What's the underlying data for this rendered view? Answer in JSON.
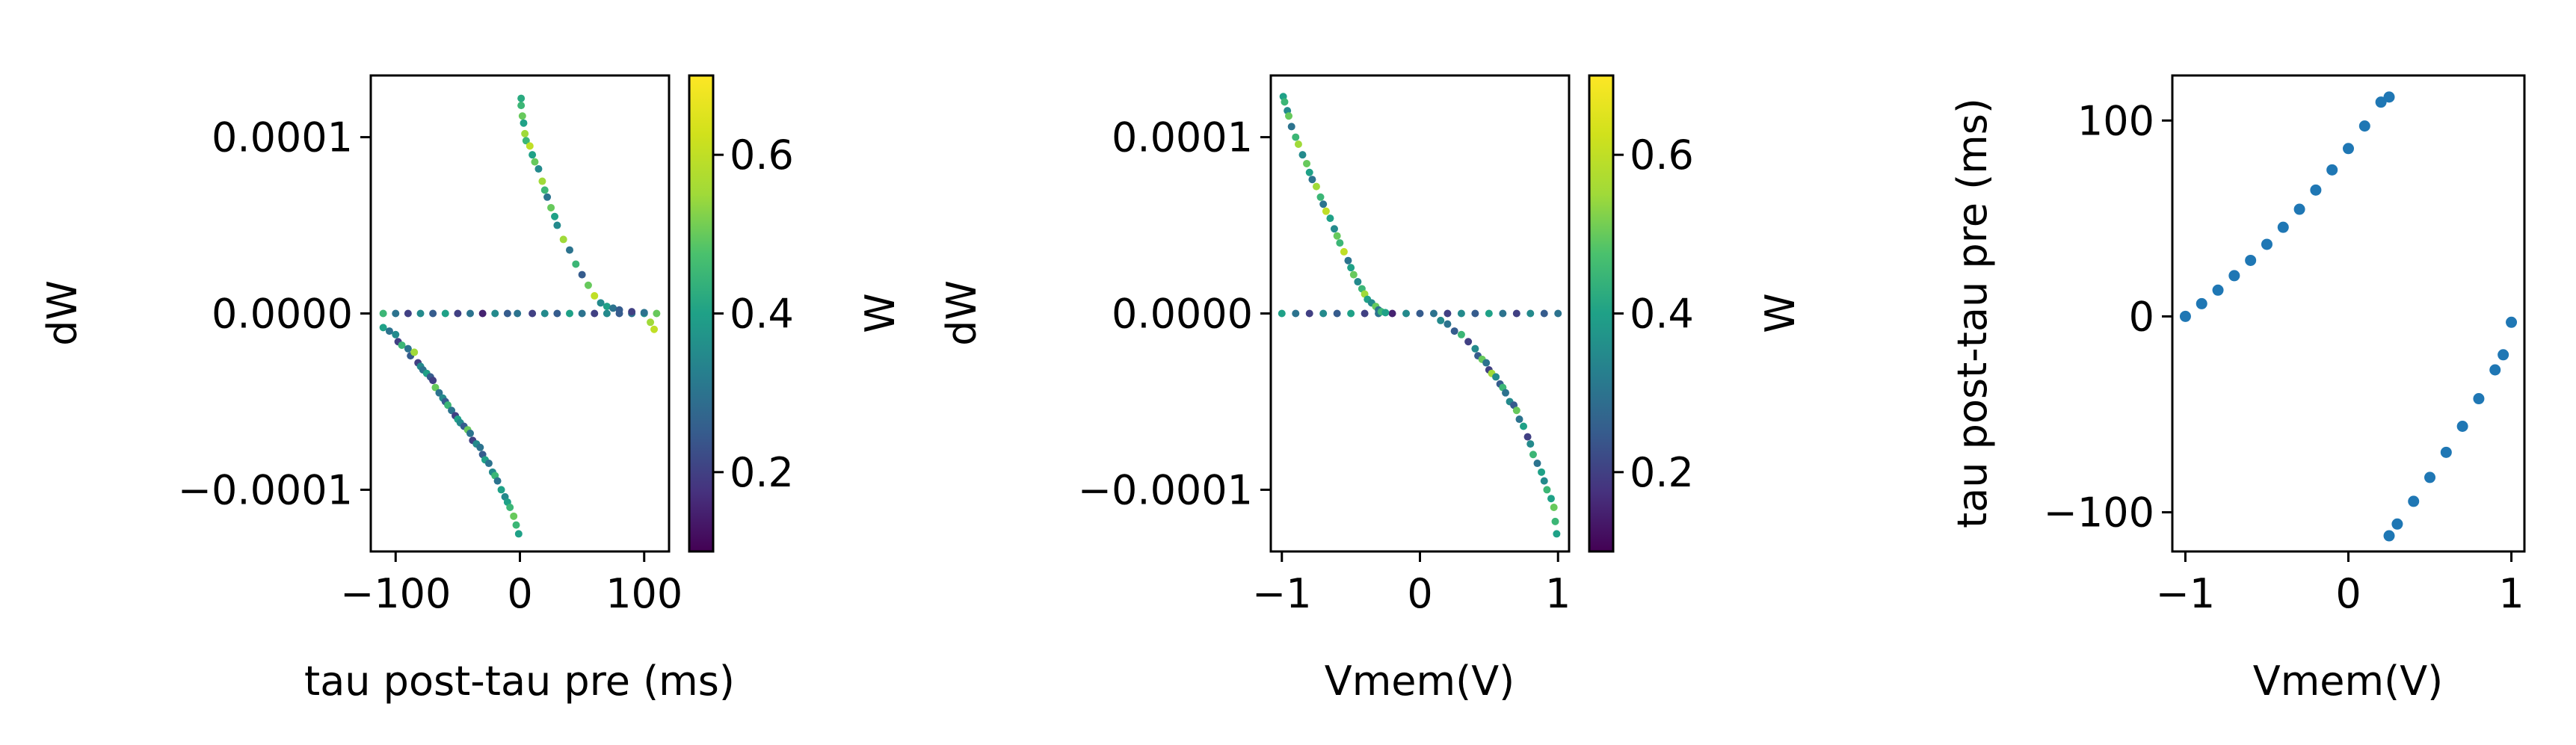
{
  "chart_data": [
    {
      "type": "scatter",
      "xlabel": "tau post-tau pre (ms)",
      "ylabel": "dW",
      "xticks": [
        -100,
        0,
        100
      ],
      "xtick_labels": [
        "−100",
        "0",
        "100"
      ],
      "yticks": [
        -0.0001,
        0.0,
        0.0001
      ],
      "ytick_labels": [
        "−0.0001",
        "0.0000",
        "0.0001"
      ],
      "xlim": [
        -120,
        120
      ],
      "ylim": [
        -0.000135,
        0.000135
      ],
      "colorbar": {
        "label": "W",
        "ticks": [
          0.2,
          0.4,
          0.6
        ],
        "tick_labels": [
          "0.2",
          "0.4",
          "0.6"
        ],
        "range": [
          0.1,
          0.7
        ],
        "colormap": "viridis"
      },
      "marker_size": 2,
      "series": [
        {
          "x": [
            -110,
            -100,
            -90,
            -80,
            -70,
            -60,
            -50,
            -40,
            -30,
            -20,
            -10,
            -2,
            10,
            20,
            30,
            40,
            50,
            60,
            70,
            80,
            90,
            100,
            110
          ],
          "y": [
            0,
            0,
            0,
            0,
            0,
            0,
            0,
            0,
            0,
            0,
            0,
            0,
            0,
            0,
            0,
            0,
            0,
            0,
            0,
            0,
            0,
            0,
            0
          ],
          "w": [
            0.45,
            0.3,
            0.2,
            0.35,
            0.25,
            0.4,
            0.2,
            0.3,
            0.15,
            0.35,
            0.25,
            0.3,
            0.2,
            0.35,
            0.25,
            0.4,
            0.3,
            0.2,
            0.35,
            0.25,
            0.3,
            0.4,
            0.5
          ]
        },
        {
          "x": [
            1,
            1,
            2,
            3,
            4,
            5,
            8,
            10,
            12,
            15,
            18,
            20,
            22,
            25,
            28,
            30,
            35,
            40,
            45,
            50,
            55,
            60,
            65,
            70,
            75,
            80,
            90,
            100,
            105,
            108
          ],
          "y": [
            0.000122,
            0.000118,
            0.000112,
            0.000108,
            0.000102,
            9.8e-05,
            9.5e-05,
            9e-05,
            8.6e-05,
            8.2e-05,
            7.5e-05,
            7e-05,
            6.6e-05,
            6e-05,
            5.5e-05,
            5e-05,
            4.2e-05,
            3.6e-05,
            2.8e-05,
            2.2e-05,
            1.6e-05,
            1e-05,
            6e-06,
            4e-06,
            3e-06,
            2e-06,
            1e-06,
            5e-07,
            -5e-06,
            -9e-06
          ],
          "w": [
            0.42,
            0.45,
            0.5,
            0.4,
            0.55,
            0.45,
            0.6,
            0.4,
            0.5,
            0.35,
            0.55,
            0.45,
            0.3,
            0.5,
            0.4,
            0.35,
            0.55,
            0.3,
            0.45,
            0.25,
            0.5,
            0.6,
            0.35,
            0.4,
            0.3,
            0.25,
            0.2,
            0.3,
            0.55,
            0.6
          ]
        },
        {
          "x": [
            -110,
            -105,
            -100,
            -98,
            -95,
            -90,
            -88,
            -85,
            -82,
            -80,
            -78,
            -75,
            -72,
            -70,
            -68,
            -65,
            -62,
            -60,
            -58,
            -55,
            -52,
            -50,
            -48,
            -45,
            -42,
            -40,
            -38,
            -35,
            -32,
            -30,
            -28,
            -25,
            -22,
            -20,
            -18,
            -15,
            -12,
            -10,
            -8,
            -5,
            -3,
            -1
          ],
          "y": [
            -8e-06,
            -1e-05,
            -1.2e-05,
            -1.6e-05,
            -1.8e-05,
            -2e-05,
            -2.4e-05,
            -2.2e-05,
            -2.8e-05,
            -3e-05,
            -3.2e-05,
            -3.4e-05,
            -3.6e-05,
            -3.8e-05,
            -4.2e-05,
            -4.5e-05,
            -4.8e-05,
            -5e-05,
            -5.2e-05,
            -5.5e-05,
            -5.8e-05,
            -6e-05,
            -6.2e-05,
            -6.4e-05,
            -6.6e-05,
            -6.8e-05,
            -7.2e-05,
            -7.4e-05,
            -7.6e-05,
            -8e-05,
            -8.3e-05,
            -8.5e-05,
            -9e-05,
            -9.2e-05,
            -9.5e-05,
            -0.0001,
            -0.000104,
            -0.000107,
            -0.00011,
            -0.000115,
            -0.00012,
            -0.000125
          ],
          "w": [
            0.4,
            0.3,
            0.35,
            0.2,
            0.45,
            0.3,
            0.25,
            0.55,
            0.2,
            0.35,
            0.3,
            0.4,
            0.25,
            0.2,
            0.5,
            0.3,
            0.35,
            0.25,
            0.45,
            0.3,
            0.2,
            0.4,
            0.35,
            0.25,
            0.5,
            0.3,
            0.2,
            0.35,
            0.3,
            0.25,
            0.4,
            0.3,
            0.35,
            0.45,
            0.3,
            0.4,
            0.35,
            0.4,
            0.45,
            0.5,
            0.45,
            0.4
          ]
        }
      ]
    },
    {
      "type": "scatter",
      "xlabel": "Vmem(V)",
      "ylabel": "dW",
      "xticks": [
        -1,
        0,
        1
      ],
      "xtick_labels": [
        "−1",
        "0",
        "1"
      ],
      "yticks": [
        -0.0001,
        0.0,
        0.0001
      ],
      "ytick_labels": [
        "−0.0001",
        "0.0000",
        "0.0001"
      ],
      "xlim": [
        -1.08,
        1.08
      ],
      "ylim": [
        -0.000135,
        0.000135
      ],
      "colorbar": {
        "label": "W",
        "ticks": [
          0.2,
          0.4,
          0.6
        ],
        "tick_labels": [
          "0.2",
          "0.4",
          "0.6"
        ],
        "range": [
          0.1,
          0.7
        ],
        "colormap": "viridis"
      },
      "marker_size": 2,
      "series": [
        {
          "x": [
            -1,
            -0.9,
            -0.8,
            -0.7,
            -0.6,
            -0.5,
            -0.4,
            -0.3,
            -0.2,
            -0.1,
            0,
            0.1,
            0.2,
            0.3,
            0.4,
            0.5,
            0.6,
            0.7,
            0.8,
            0.9,
            1
          ],
          "y": [
            0,
            0,
            0,
            0,
            0,
            0,
            0,
            0,
            0,
            0,
            0,
            0,
            0,
            0,
            0,
            0,
            0,
            0,
            0,
            0,
            0
          ],
          "w": [
            0.4,
            0.3,
            0.2,
            0.35,
            0.25,
            0.4,
            0.2,
            0.3,
            0.15,
            0.35,
            0.25,
            0.3,
            0.2,
            0.35,
            0.25,
            0.4,
            0.3,
            0.2,
            0.35,
            0.25,
            0.3
          ]
        },
        {
          "x": [
            -0.99,
            -0.98,
            -0.96,
            -0.95,
            -0.93,
            -0.9,
            -0.88,
            -0.85,
            -0.82,
            -0.8,
            -0.78,
            -0.75,
            -0.72,
            -0.7,
            -0.68,
            -0.65,
            -0.62,
            -0.6,
            -0.58,
            -0.55,
            -0.52,
            -0.5,
            -0.48,
            -0.45,
            -0.42,
            -0.4,
            -0.38,
            -0.35,
            -0.32,
            -0.3,
            -0.28,
            -0.25
          ],
          "y": [
            0.000123,
            0.00012,
            0.000115,
            0.000112,
            0.000106,
            0.0001,
            9.6e-05,
            9e-05,
            8.5e-05,
            8e-05,
            7.6e-05,
            7.2e-05,
            6.6e-05,
            6.2e-05,
            5.8e-05,
            5.4e-05,
            4.8e-05,
            4.4e-05,
            4e-05,
            3.5e-05,
            3e-05,
            2.6e-05,
            2.2e-05,
            1.8e-05,
            1.4e-05,
            1.1e-05,
            8e-06,
            6e-06,
            4e-06,
            2e-06,
            1e-06,
            5e-07
          ],
          "w": [
            0.4,
            0.45,
            0.35,
            0.5,
            0.3,
            0.45,
            0.55,
            0.35,
            0.5,
            0.4,
            0.3,
            0.55,
            0.45,
            0.3,
            0.6,
            0.4,
            0.35,
            0.5,
            0.45,
            0.6,
            0.3,
            0.4,
            0.5,
            0.35,
            0.45,
            0.55,
            0.4,
            0.35,
            0.5,
            0.3,
            0.45,
            0.4
          ]
        },
        {
          "x": [
            0.15,
            0.2,
            0.25,
            0.3,
            0.35,
            0.4,
            0.42,
            0.45,
            0.48,
            0.5,
            0.52,
            0.55,
            0.58,
            0.6,
            0.62,
            0.65,
            0.68,
            0.7,
            0.72,
            0.75,
            0.78,
            0.8,
            0.82,
            0.85,
            0.88,
            0.9,
            0.92,
            0.95,
            0.97,
            0.98,
            0.99
          ],
          "y": [
            -4e-06,
            -6e-06,
            -1e-05,
            -1.2e-05,
            -1.6e-05,
            -2e-05,
            -2.4e-05,
            -2.6e-05,
            -2.8e-05,
            -3.2e-05,
            -3.4e-05,
            -3.6e-05,
            -4e-05,
            -4.2e-05,
            -4.5e-05,
            -5e-05,
            -5.2e-05,
            -5.5e-05,
            -6e-05,
            -6.4e-05,
            -7e-05,
            -7.4e-05,
            -8e-05,
            -8.5e-05,
            -9e-05,
            -9.5e-05,
            -0.0001,
            -0.000105,
            -0.00011,
            -0.000118,
            -0.000125
          ],
          "w": [
            0.35,
            0.3,
            0.25,
            0.45,
            0.2,
            0.35,
            0.25,
            0.5,
            0.3,
            0.2,
            0.55,
            0.35,
            0.25,
            0.45,
            0.3,
            0.35,
            0.25,
            0.5,
            0.3,
            0.4,
            0.2,
            0.35,
            0.45,
            0.3,
            0.4,
            0.35,
            0.45,
            0.4,
            0.5,
            0.45,
            0.4
          ]
        }
      ]
    },
    {
      "type": "scatter",
      "xlabel": "Vmem(V)",
      "ylabel": "tau post-tau pre (ms)",
      "xticks": [
        -1,
        0,
        1
      ],
      "xtick_labels": [
        "−1",
        "0",
        "1"
      ],
      "yticks": [
        -100,
        0,
        100
      ],
      "ytick_labels": [
        "−100",
        "0",
        "100"
      ],
      "xlim": [
        -1.08,
        1.08
      ],
      "ylim": [
        -120,
        123
      ],
      "color": "#1f77b4",
      "marker_size": 3,
      "series": [
        {
          "x": [
            -1.0,
            -0.9,
            -0.8,
            -0.7,
            -0.6,
            -0.5,
            -0.4,
            -0.3,
            -0.2,
            -0.1,
            0.0,
            0.1,
            0.2,
            0.25
          ],
          "y": [
            0,
            6.5,
            13.4,
            20.8,
            28.6,
            36.8,
            45.5,
            54.7,
            64.5,
            74.8,
            85.7,
            97.2,
            109.4,
            112
          ]
        },
        {
          "x": [
            0.25,
            0.3,
            0.4,
            0.5,
            0.6,
            0.7,
            0.8,
            0.9,
            0.95,
            1.0
          ],
          "y": [
            -112,
            -106.0,
            -94.4,
            -82.2,
            -69.4,
            -56.1,
            -42.0,
            -27.3,
            -19.6,
            -3
          ]
        }
      ]
    }
  ]
}
